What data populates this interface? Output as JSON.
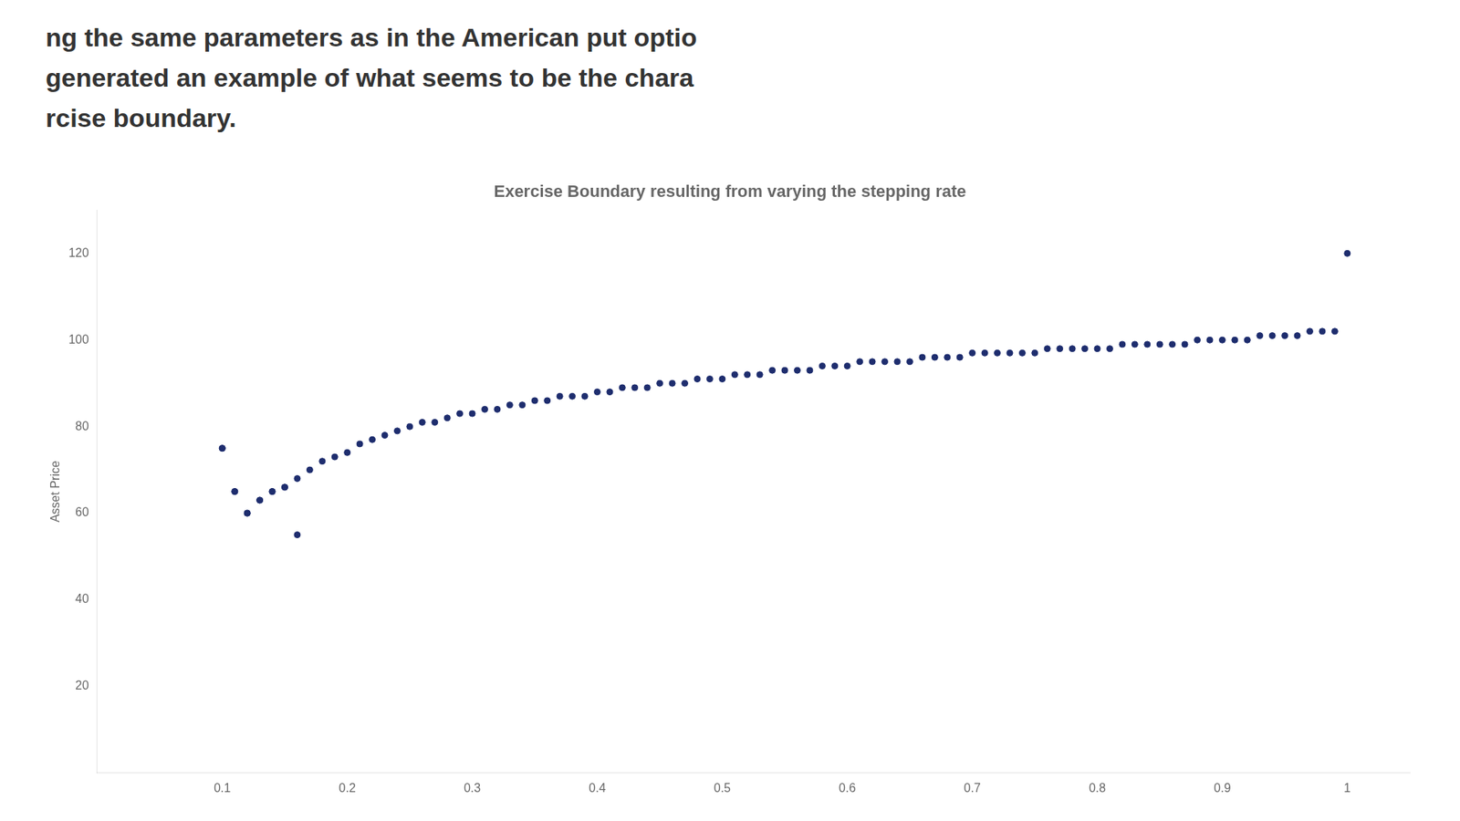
{
  "chart_data": {
    "type": "scatter",
    "title": "Exercise Boundary resulting from varying the stepping rate",
    "ylabel": "Asset Price",
    "annotations": [
      "ng the same parameters as in the American put optio",
      "generated an example of what seems to be the chara",
      "rcise boundary."
    ],
    "series": [
      {
        "color": "#1e2d6e",
        "x": [
          0.1,
          0.11,
          0.12,
          0.13,
          0.14,
          0.15,
          0.16,
          0.17,
          0.18,
          0.19,
          0.2,
          0.21,
          0.22,
          0.23,
          0.24,
          0.25,
          0.26,
          0.27,
          0.28,
          0.29,
          0.3,
          0.31,
          0.32,
          0.33,
          0.34,
          0.35,
          0.36,
          0.37,
          0.38,
          0.39,
          0.4,
          0.41,
          0.42,
          0.43,
          0.44,
          0.45,
          0.46,
          0.47,
          0.48,
          0.49,
          0.5,
          0.51,
          0.52,
          0.53,
          0.54,
          0.55,
          0.56,
          0.57,
          0.58,
          0.59,
          0.6,
          0.61,
          0.62,
          0.63,
          0.64,
          0.65,
          0.66,
          0.67,
          0.68,
          0.69,
          0.7,
          0.71,
          0.72,
          0.73,
          0.74,
          0.75,
          0.76,
          0.77,
          0.78,
          0.79,
          0.8,
          0.81,
          0.82,
          0.83,
          0.84,
          0.85,
          0.86,
          0.87,
          0.88,
          0.89,
          0.9,
          0.91,
          0.92,
          0.93,
          0.94,
          0.95,
          0.96,
          0.97,
          0.98,
          0.99,
          1.0
        ],
        "values": [
          75,
          65,
          60,
          63,
          65,
          66,
          68,
          70,
          72,
          73,
          74,
          76,
          77,
          78,
          79,
          80,
          81,
          81,
          82,
          83,
          83,
          84,
          84,
          85,
          85,
          86,
          86,
          87,
          87,
          87,
          88,
          88,
          89,
          89,
          89,
          90,
          90,
          90,
          91,
          91,
          91,
          92,
          92,
          92,
          93,
          93,
          93,
          93,
          94,
          94,
          94,
          95,
          95,
          95,
          95,
          95,
          96,
          96,
          96,
          96,
          97,
          97,
          97,
          97,
          97,
          97,
          98,
          98,
          98,
          98,
          98,
          98,
          99,
          99,
          99,
          99,
          99,
          99,
          100,
          100,
          100,
          100,
          100,
          101,
          101,
          101,
          101,
          102,
          102,
          102,
          120
        ]
      },
      {
        "color": "#1e2d6e",
        "x": [
          0.1,
          0.11,
          0.12,
          0.13,
          0.14,
          0.15,
          0.16
        ],
        "values": [
          75,
          65,
          60,
          63,
          65,
          66,
          55
        ]
      }
    ],
    "xlim": [
      0.0,
      1.05
    ],
    "ylim": [
      0,
      130
    ],
    "xticks": [
      0.1,
      0.2,
      0.3,
      0.4,
      0.5,
      0.6,
      0.7,
      0.8,
      0.9,
      1.0
    ],
    "yticks": [
      20,
      40,
      60,
      80,
      100,
      120
    ],
    "grid": false
  }
}
